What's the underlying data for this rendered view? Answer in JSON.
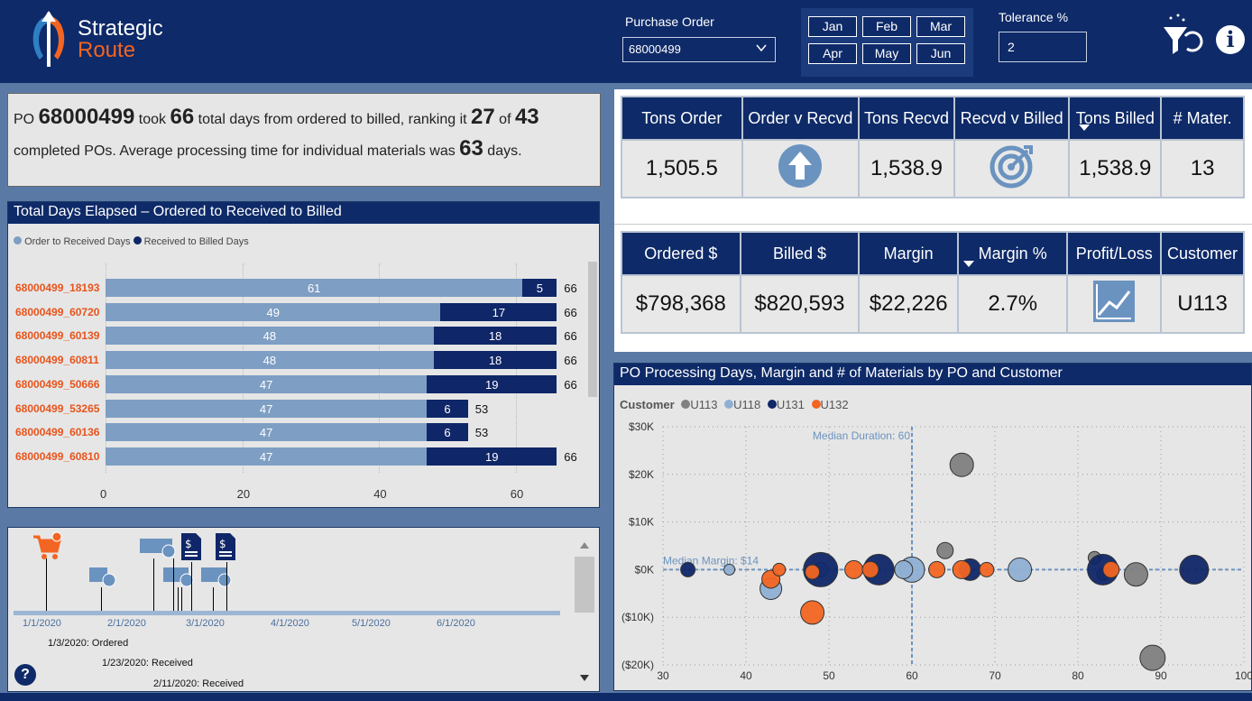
{
  "header": {
    "logo_line1": "Strategic",
    "logo_line2": "Route",
    "po_label": "Purchase Order",
    "po_value": "68000499",
    "months": [
      "Jan",
      "Feb",
      "Mar",
      "Apr",
      "May",
      "Jun"
    ],
    "tolerance_label": "Tolerance %",
    "tolerance_value": "2"
  },
  "summary": {
    "t1": "PO ",
    "po": "68000499",
    "t2": " took ",
    "days": "66",
    "t3": " total days from ordered to billed, ranking it ",
    "rank": "27",
    "t4": " of ",
    "total": "43",
    "t5": " completed POs. Average processing time for individual materials was ",
    "avg": "63",
    "t6": " days."
  },
  "kpi1": {
    "headers": [
      "Tons Order",
      "Order v Recvd",
      "Tons Recvd",
      "Recvd v Billed",
      "Tons Billed",
      "# Mater."
    ],
    "values": [
      "1,505.5",
      "",
      "1,538.9",
      "",
      "1,538.9",
      "13"
    ]
  },
  "kpi2": {
    "headers": [
      "Ordered $",
      "Billed $",
      "Margin",
      "Margin %",
      "Profit/Loss",
      "Customer"
    ],
    "values": [
      "$798,368",
      "$820,593",
      "$22,226",
      "2.7%",
      "",
      "U113"
    ]
  },
  "bar_panel": {
    "title": "Total Days Elapsed – Ordered to Received to Billed",
    "legend1": "Order to Received Days",
    "legend2": "Received to Billed Days"
  },
  "timeline": {
    "dates": [
      "1/1/2020",
      "2/1/2020",
      "3/1/2020",
      "4/1/2020",
      "5/1/2020",
      "6/1/2020"
    ],
    "events": [
      "1/3/2020: Ordered",
      "1/23/2020: Received",
      "2/11/2020: Received"
    ]
  },
  "scatter_panel": {
    "title": "PO Processing Days, Margin and # of Materials by PO and Customer",
    "legend_title": "Customer",
    "customers": [
      "U113",
      "U118",
      "U131",
      "U132"
    ],
    "colors": {
      "U113": "#808080",
      "U118": "#8fb0d3",
      "U131": "#0f2668",
      "U132": "#f26522"
    },
    "median_duration": "Median Duration: 60",
    "median_margin": "Median Margin: $14"
  },
  "chart_data": [
    {
      "type": "bar",
      "title": "Total Days Elapsed – Ordered to Received to Billed",
      "categories": [
        "68000499_18193",
        "68000499_60720",
        "68000499_60139",
        "68000499_60811",
        "68000499_50666",
        "68000499_53265",
        "68000499_60136",
        "68000499_60810"
      ],
      "series": [
        {
          "name": "Order to Received Days",
          "values": [
            61,
            49,
            48,
            48,
            47,
            47,
            47,
            47
          ]
        },
        {
          "name": "Received to Billed Days",
          "values": [
            5,
            17,
            18,
            18,
            19,
            6,
            6,
            19
          ]
        }
      ],
      "totals": [
        66,
        66,
        66,
        66,
        66,
        53,
        53,
        66
      ],
      "xticks": [
        "0",
        "20",
        "40",
        "60"
      ],
      "xlim": [
        0,
        68
      ],
      "stacked": true
    },
    {
      "type": "scatter",
      "title": "PO Processing Days, Margin and # of Materials by PO and Customer",
      "xlim": [
        30,
        100
      ],
      "ylim": [
        -20000,
        30000
      ],
      "xticks": [
        "30",
        "40",
        "50",
        "60",
        "70",
        "80",
        "90",
        "100"
      ],
      "yticks": [
        "($20K)",
        "($10K)",
        "$0K",
        "$10K",
        "$20K",
        "$30K"
      ],
      "points": [
        {
          "c": "U113",
          "x": 66,
          "y": 22000,
          "r": 13
        },
        {
          "c": "U113",
          "x": 64,
          "y": 4000,
          "r": 9
        },
        {
          "c": "U113",
          "x": 82,
          "y": 2500,
          "r": 7
        },
        {
          "c": "U113",
          "x": 89,
          "y": -18500,
          "r": 14
        },
        {
          "c": "U113",
          "x": 87,
          "y": -1000,
          "r": 13
        },
        {
          "c": "U113",
          "x": 83,
          "y": -1000,
          "r": 7
        },
        {
          "c": "U118",
          "x": 38,
          "y": 0,
          "r": 6
        },
        {
          "c": "U118",
          "x": 43,
          "y": -4000,
          "r": 12
        },
        {
          "c": "U118",
          "x": 49,
          "y": 0,
          "r": 8
        },
        {
          "c": "U118",
          "x": 60,
          "y": 0,
          "r": 14
        },
        {
          "c": "U118",
          "x": 73,
          "y": 0,
          "r": 13
        },
        {
          "c": "U118",
          "x": 59,
          "y": 0,
          "r": 10
        },
        {
          "c": "U131",
          "x": 33,
          "y": 0,
          "r": 8
        },
        {
          "c": "U131",
          "x": 49,
          "y": 0,
          "r": 19
        },
        {
          "c": "U131",
          "x": 56,
          "y": 0,
          "r": 17
        },
        {
          "c": "U131",
          "x": 83,
          "y": 0,
          "r": 17
        },
        {
          "c": "U131",
          "x": 94,
          "y": 0,
          "r": 16
        },
        {
          "c": "U131",
          "x": 67,
          "y": 0,
          "r": 12
        },
        {
          "c": "U132",
          "x": 48,
          "y": -9000,
          "r": 13
        },
        {
          "c": "U132",
          "x": 43,
          "y": -2000,
          "r": 10
        },
        {
          "c": "U132",
          "x": 44,
          "y": 0,
          "r": 7
        },
        {
          "c": "U132",
          "x": 53,
          "y": 0,
          "r": 10
        },
        {
          "c": "U132",
          "x": 55,
          "y": 0,
          "r": 9
        },
        {
          "c": "U132",
          "x": 63,
          "y": 0,
          "r": 9
        },
        {
          "c": "U132",
          "x": 66,
          "y": 0,
          "r": 10
        },
        {
          "c": "U132",
          "x": 69,
          "y": 0,
          "r": 8
        },
        {
          "c": "U132",
          "x": 84,
          "y": 0,
          "r": 9
        },
        {
          "c": "U132",
          "x": 48,
          "y": -500,
          "r": 8
        }
      ]
    }
  ]
}
